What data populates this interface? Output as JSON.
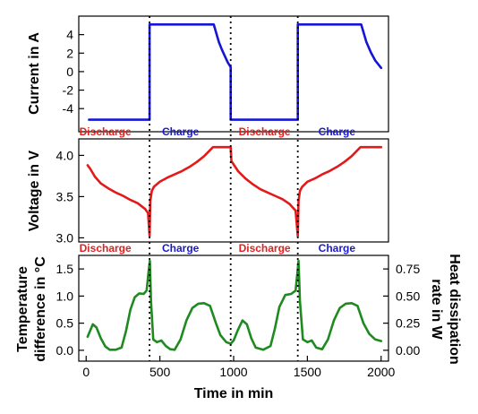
{
  "chart_data": [
    {
      "type": "line",
      "title": "",
      "xlabel": "",
      "ylabel": "Current in A",
      "xlim": [
        -50,
        2050
      ],
      "ylim": [
        -6.5,
        6
      ],
      "yticks": [
        "4",
        "2",
        "0",
        "-2",
        "-4"
      ],
      "ytick_values": [
        4,
        2,
        0,
        -2,
        -4
      ],
      "grid": false,
      "phase_labels": [
        {
          "text": "Discharge",
          "x": 130,
          "color": "#dd2222"
        },
        {
          "text": "Charge",
          "x": 640,
          "color": "#1a1acc"
        },
        {
          "text": "Discharge",
          "x": 1210,
          "color": "#dd2222"
        },
        {
          "text": "Charge",
          "x": 1700,
          "color": "#1a1acc"
        }
      ],
      "series": [
        {
          "color": "#1515d6",
          "x": [
            20,
            430,
            430,
            865,
            900,
            920,
            940,
            960,
            980,
            980,
            1435,
            1435,
            1865,
            1900,
            1930,
            1960,
            2000
          ],
          "y": [
            -5.2,
            -5.2,
            5.1,
            5.1,
            3.2,
            2.4,
            1.7,
            1.0,
            0.5,
            -5.2,
            -5.2,
            5.1,
            5.1,
            3.2,
            2.1,
            1.2,
            0.4
          ]
        }
      ]
    },
    {
      "type": "line",
      "title": "",
      "xlabel": "",
      "ylabel": "Voltage in V",
      "xlim": [
        -50,
        2050
      ],
      "ylim": [
        2.95,
        4.2
      ],
      "yticks": [
        "4.0",
        "3.5",
        "3.0"
      ],
      "ytick_values": [
        4.0,
        3.5,
        3.0
      ],
      "grid": false,
      "phase_labels": [
        {
          "text": "Discharge",
          "x": 130,
          "color": "#dd2222"
        },
        {
          "text": "Charge",
          "x": 640,
          "color": "#1a1acc"
        },
        {
          "text": "Discharge",
          "x": 1210,
          "color": "#dd2222"
        },
        {
          "text": "Charge",
          "x": 1700,
          "color": "#1a1acc"
        }
      ],
      "series": [
        {
          "color": "#e31a1a",
          "x": [
            10,
            30,
            60,
            100,
            150,
            200,
            250,
            300,
            350,
            400,
            420,
            430,
            435,
            445,
            460,
            500,
            550,
            600,
            650,
            700,
            750,
            800,
            860,
            870,
            950,
            980,
            985,
            1000,
            1030,
            1080,
            1130,
            1180,
            1230,
            1280,
            1330,
            1380,
            1420,
            1435,
            1440,
            1450,
            1465,
            1500,
            1550,
            1600,
            1650,
            1700,
            1750,
            1800,
            1860,
            1870,
            2000
          ],
          "y": [
            3.88,
            3.83,
            3.74,
            3.66,
            3.6,
            3.55,
            3.51,
            3.46,
            3.42,
            3.35,
            3.3,
            3.02,
            3.45,
            3.57,
            3.62,
            3.68,
            3.73,
            3.77,
            3.81,
            3.86,
            3.92,
            3.99,
            4.1,
            4.1,
            4.1,
            4.1,
            3.93,
            3.89,
            3.81,
            3.72,
            3.65,
            3.59,
            3.55,
            3.51,
            3.47,
            3.41,
            3.33,
            3.02,
            3.45,
            3.57,
            3.62,
            3.68,
            3.72,
            3.77,
            3.81,
            3.86,
            3.92,
            3.99,
            4.1,
            4.1,
            4.1
          ]
        }
      ]
    },
    {
      "type": "line",
      "title": "",
      "xlabel": "Time in min",
      "ylabel": "Temperature difference in °C",
      "ylabel_lines": [
        "Temperature",
        "difference in °C"
      ],
      "ylabel_right": "Heat dissipation rate in W",
      "ylabel_right_lines": [
        "Heat dissipation",
        "rate in W"
      ],
      "xlim": [
        -50,
        2050
      ],
      "ylim": [
        -0.2,
        1.75
      ],
      "xticks": [
        "0",
        "500",
        "1000",
        "1500",
        "2000"
      ],
      "xtick_values": [
        0,
        500,
        1000,
        1500,
        2000
      ],
      "yticks": [
        "1.5",
        "1.0",
        "0.5",
        "0.0"
      ],
      "ytick_values": [
        1.5,
        1.0,
        0.5,
        0.0
      ],
      "yticks_right": [
        "0.75",
        "0.50",
        "0.25",
        "0.00"
      ],
      "ytick_right_values": [
        0.75,
        0.5,
        0.25,
        0.0
      ],
      "grid": false,
      "series": [
        {
          "color": "#1f8a1f",
          "x": [
            10,
            25,
            45,
            70,
            100,
            130,
            160,
            200,
            240,
            270,
            300,
            330,
            360,
            390,
            410,
            425,
            432,
            440,
            455,
            480,
            510,
            540,
            570,
            600,
            640,
            680,
            720,
            760,
            800,
            840,
            880,
            910,
            950,
            980,
            1000,
            1030,
            1060,
            1090,
            1120,
            1150,
            1200,
            1250,
            1280,
            1310,
            1350,
            1390,
            1420,
            1435,
            1440,
            1450,
            1470,
            1500,
            1530,
            1560,
            1600,
            1640,
            1680,
            1720,
            1760,
            1800,
            1840,
            1880,
            1920,
            1960,
            2000
          ],
          "y": [
            0.25,
            0.35,
            0.48,
            0.42,
            0.22,
            0.07,
            0.01,
            0.01,
            0.05,
            0.35,
            0.75,
            0.98,
            1.05,
            1.04,
            1.1,
            1.5,
            1.65,
            0.9,
            0.2,
            0.15,
            0.18,
            0.08,
            0.02,
            0.01,
            0.2,
            0.55,
            0.78,
            0.86,
            0.87,
            0.82,
            0.5,
            0.28,
            0.15,
            0.12,
            0.18,
            0.38,
            0.55,
            0.48,
            0.22,
            0.05,
            0.01,
            0.08,
            0.4,
            0.8,
            1.02,
            1.04,
            1.1,
            1.5,
            1.65,
            0.9,
            0.2,
            0.15,
            0.18,
            0.05,
            0.02,
            0.2,
            0.55,
            0.78,
            0.86,
            0.87,
            0.82,
            0.5,
            0.3,
            0.2,
            0.17
          ]
        }
      ]
    }
  ],
  "annotations": {
    "dotted_x": [
      430,
      980,
      1435
    ]
  }
}
